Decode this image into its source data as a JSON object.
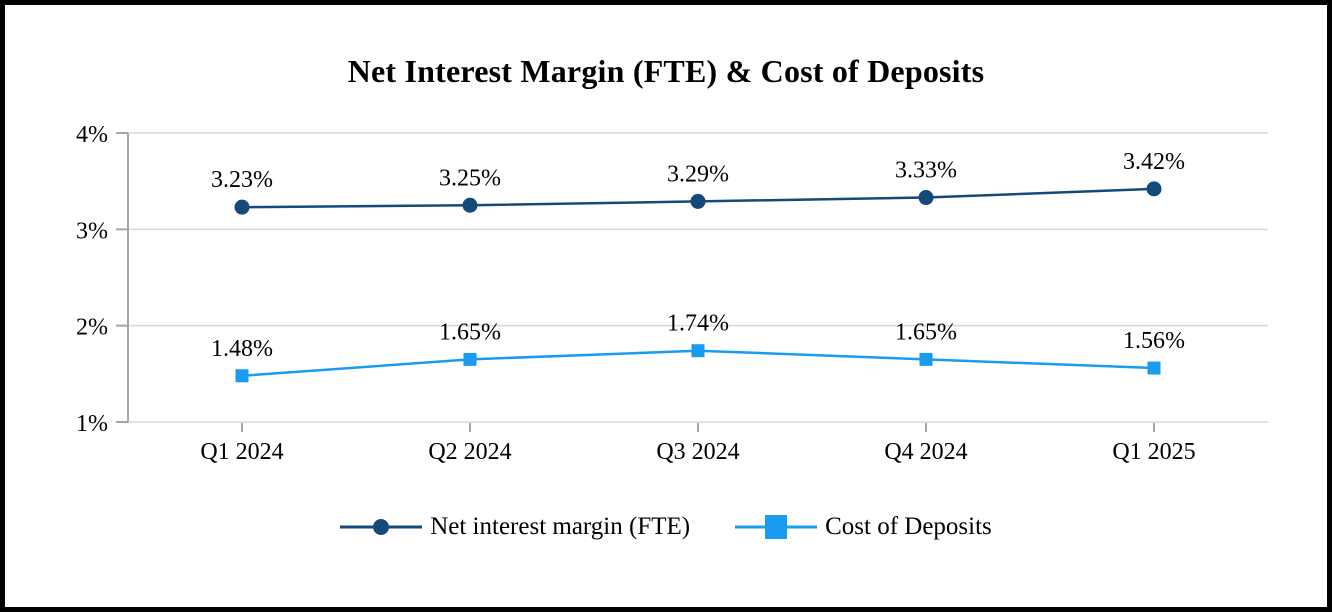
{
  "chart_data": {
    "type": "line",
    "title": "Net Interest Margin (FTE) & Cost of Deposits",
    "categories": [
      "Q1 2024",
      "Q2 2024",
      "Q3 2024",
      "Q4 2024",
      "Q1 2025"
    ],
    "series": [
      {
        "name": "Net interest margin (FTE)",
        "values": [
          3.23,
          3.25,
          3.29,
          3.33,
          3.42
        ],
        "value_labels": [
          "3.23%",
          "3.25%",
          "3.29%",
          "3.33%",
          "3.42%"
        ],
        "color": "#15497A",
        "marker": "circle"
      },
      {
        "name": "Cost of Deposits",
        "values": [
          1.48,
          1.65,
          1.74,
          1.65,
          1.56
        ],
        "value_labels": [
          "1.48%",
          "1.65%",
          "1.74%",
          "1.65%",
          "1.56%"
        ],
        "color": "#199BF0",
        "marker": "square"
      }
    ],
    "y_axis": {
      "min": 1,
      "max": 4,
      "tick_labels": [
        "4%",
        "3%",
        "2%",
        "1%"
      ],
      "tick_values": [
        4,
        3,
        2,
        1
      ]
    },
    "xlabel": "",
    "ylabel": "",
    "grid": true,
    "legend_position": "bottom"
  },
  "colors": {
    "grid": "#D9D9D9",
    "axis": "#A6A6A6",
    "text": "#000000",
    "background": "#FFFFFF",
    "frame_border": "#000000"
  }
}
